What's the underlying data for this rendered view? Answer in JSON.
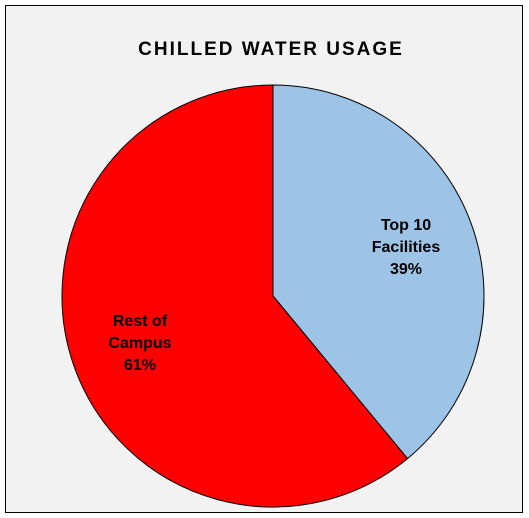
{
  "chart_data": {
    "type": "pie",
    "title": "CHILLED WATER USAGE",
    "categories": [
      "Top 10 Facilities",
      "Rest of Campus"
    ],
    "values": [
      39,
      61
    ],
    "value_labels": [
      "39%",
      "61%"
    ],
    "colors": [
      "#9dc3e6",
      "#ff0000"
    ]
  }
}
